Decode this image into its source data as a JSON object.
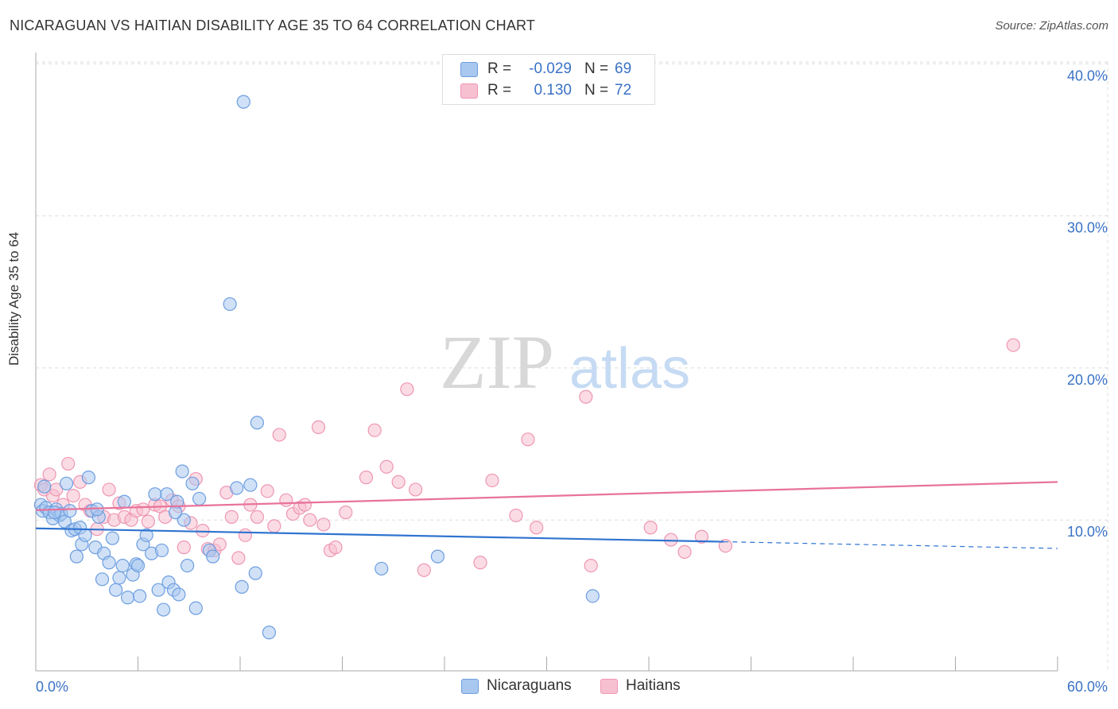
{
  "title": "NICARAGUAN VS HAITIAN DISABILITY AGE 35 TO 64 CORRELATION CHART",
  "source": "Source: ZipAtlas.com",
  "watermark": {
    "zip": "ZIP",
    "atlas": "atlas"
  },
  "colors": {
    "nicaraguans_fill": "#a9c8f0",
    "nicaraguans_stroke": "#6d9ee0",
    "nicaraguans_line": "#2f74d0",
    "haitians_fill": "#f7c0d0",
    "haitians_stroke": "#ee96b2",
    "haitians_line": "#e8739a",
    "axis_text": "#3a72c6",
    "grid": "#dddddd"
  },
  "stats": {
    "nicaraguans": {
      "r_label": "R =",
      "r_value": "-0.029",
      "n_label": "N =",
      "n_value": "69"
    },
    "haitians": {
      "r_label": "R =",
      "r_value": "0.130",
      "n_label": "N =",
      "n_value": "72"
    }
  },
  "legend": {
    "nicaraguans": "Nicaraguans",
    "haitians": "Haitians"
  },
  "chart_data": {
    "type": "scatter",
    "title": "NICARAGUAN VS HAITIAN DISABILITY AGE 35 TO 64 CORRELATION CHART",
    "xlabel": "",
    "ylabel": "Disability Age 35 to 64",
    "xlim": [
      0,
      60
    ],
    "ylim": [
      0,
      42
    ],
    "x_tick_labels": [
      {
        "value": 0,
        "label": "0.0%"
      },
      {
        "value": 60,
        "label": "60.0%"
      }
    ],
    "x_minor_ticks": [
      0,
      6,
      12,
      18,
      24,
      30,
      36,
      42,
      48,
      54,
      60
    ],
    "y_tick_labels": [
      {
        "value": 10,
        "label": "10.0%"
      },
      {
        "value": 20,
        "label": "20.0%"
      },
      {
        "value": 30,
        "label": "30.0%"
      },
      {
        "value": 40,
        "label": "40.0%"
      }
    ],
    "grid": true,
    "series": [
      {
        "name": "Nicaraguans",
        "points": [
          [
            0.3,
            11.0
          ],
          [
            0.4,
            10.6
          ],
          [
            0.6,
            10.8
          ],
          [
            0.8,
            10.5
          ],
          [
            1.0,
            10.1
          ],
          [
            1.2,
            10.7
          ],
          [
            1.4,
            10.3
          ],
          [
            1.5,
            10.4
          ],
          [
            1.7,
            9.9
          ],
          [
            1.8,
            12.4
          ],
          [
            2.0,
            10.6
          ],
          [
            2.1,
            9.3
          ],
          [
            2.3,
            9.4
          ],
          [
            2.4,
            7.6
          ],
          [
            2.6,
            9.5
          ],
          [
            2.7,
            8.4
          ],
          [
            2.9,
            9.0
          ],
          [
            3.1,
            12.8
          ],
          [
            3.3,
            10.6
          ],
          [
            3.5,
            8.2
          ],
          [
            3.7,
            10.2
          ],
          [
            3.9,
            6.1
          ],
          [
            4.0,
            7.8
          ],
          [
            4.3,
            7.2
          ],
          [
            4.5,
            8.8
          ],
          [
            4.7,
            5.4
          ],
          [
            4.9,
            6.2
          ],
          [
            5.1,
            7.0
          ],
          [
            5.2,
            11.2
          ],
          [
            5.4,
            4.9
          ],
          [
            5.7,
            6.4
          ],
          [
            5.9,
            7.1
          ],
          [
            6.1,
            5.0
          ],
          [
            6.3,
            8.4
          ],
          [
            6.5,
            9.0
          ],
          [
            6.8,
            7.8
          ],
          [
            7.0,
            11.7
          ],
          [
            7.2,
            5.4
          ],
          [
            7.4,
            8.0
          ],
          [
            7.5,
            4.1
          ],
          [
            7.7,
            11.7
          ],
          [
            7.8,
            5.9
          ],
          [
            8.1,
            5.4
          ],
          [
            8.3,
            11.2
          ],
          [
            8.4,
            5.1
          ],
          [
            8.6,
            13.2
          ],
          [
            8.7,
            10.0
          ],
          [
            8.9,
            7.0
          ],
          [
            9.2,
            12.4
          ],
          [
            9.4,
            4.2
          ],
          [
            10.2,
            8.0
          ],
          [
            10.4,
            7.6
          ],
          [
            11.4,
            24.2
          ],
          [
            11.8,
            12.1
          ],
          [
            12.1,
            5.6
          ],
          [
            12.2,
            37.5
          ],
          [
            12.6,
            12.3
          ],
          [
            12.9,
            6.5
          ],
          [
            13.0,
            16.4
          ],
          [
            13.7,
            2.6
          ],
          [
            20.3,
            6.8
          ],
          [
            23.6,
            7.6
          ],
          [
            32.7,
            5.0
          ],
          [
            0.5,
            12.2
          ],
          [
            1.1,
            10.5
          ],
          [
            3.6,
            10.7
          ],
          [
            6.0,
            7.0
          ],
          [
            8.2,
            10.5
          ],
          [
            9.6,
            11.4
          ]
        ],
        "trend": {
          "x0": 0,
          "y0": 9.45,
          "x1": 40.4,
          "y1": 8.57,
          "dash_to_x": 60,
          "dash_to_y": 8.13
        }
      },
      {
        "name": "Haitians",
        "points": [
          [
            0.3,
            12.3
          ],
          [
            0.5,
            12.0
          ],
          [
            0.8,
            13.0
          ],
          [
            1.0,
            11.6
          ],
          [
            1.2,
            12.0
          ],
          [
            1.6,
            11.0
          ],
          [
            1.9,
            13.7
          ],
          [
            2.2,
            11.6
          ],
          [
            2.6,
            12.5
          ],
          [
            2.9,
            11.0
          ],
          [
            3.2,
            10.6
          ],
          [
            3.6,
            9.4
          ],
          [
            4.0,
            10.2
          ],
          [
            4.3,
            12.0
          ],
          [
            4.6,
            10.0
          ],
          [
            4.9,
            11.1
          ],
          [
            5.2,
            10.2
          ],
          [
            5.6,
            10.0
          ],
          [
            5.9,
            10.6
          ],
          [
            6.3,
            10.7
          ],
          [
            6.6,
            9.9
          ],
          [
            7.0,
            11.0
          ],
          [
            7.3,
            10.9
          ],
          [
            7.6,
            10.2
          ],
          [
            8.0,
            11.3
          ],
          [
            8.4,
            10.9
          ],
          [
            8.7,
            8.2
          ],
          [
            9.1,
            9.8
          ],
          [
            9.4,
            12.7
          ],
          [
            9.8,
            9.3
          ],
          [
            10.1,
            8.1
          ],
          [
            10.5,
            8.0
          ],
          [
            10.8,
            8.4
          ],
          [
            11.2,
            11.8
          ],
          [
            11.5,
            10.2
          ],
          [
            11.9,
            7.5
          ],
          [
            12.3,
            9.0
          ],
          [
            12.6,
            11.0
          ],
          [
            13.0,
            10.2
          ],
          [
            13.6,
            11.9
          ],
          [
            14.0,
            9.6
          ],
          [
            14.3,
            15.6
          ],
          [
            14.7,
            11.3
          ],
          [
            15.1,
            10.4
          ],
          [
            15.5,
            10.8
          ],
          [
            15.8,
            11.0
          ],
          [
            16.1,
            10.0
          ],
          [
            16.6,
            16.1
          ],
          [
            16.9,
            9.7
          ],
          [
            17.3,
            8.0
          ],
          [
            17.6,
            8.2
          ],
          [
            18.2,
            10.5
          ],
          [
            19.4,
            12.8
          ],
          [
            19.9,
            15.9
          ],
          [
            20.6,
            13.5
          ],
          [
            21.3,
            12.5
          ],
          [
            21.8,
            18.6
          ],
          [
            22.3,
            12.0
          ],
          [
            22.8,
            6.7
          ],
          [
            26.1,
            7.2
          ],
          [
            26.8,
            12.6
          ],
          [
            28.2,
            10.3
          ],
          [
            28.9,
            15.3
          ],
          [
            29.4,
            9.5
          ],
          [
            32.3,
            18.1
          ],
          [
            32.6,
            7.0
          ],
          [
            36.1,
            9.5
          ],
          [
            37.3,
            8.7
          ],
          [
            38.1,
            7.9
          ],
          [
            39.1,
            8.9
          ],
          [
            40.5,
            8.3
          ],
          [
            57.4,
            21.5
          ]
        ],
        "trend": {
          "x0": 0,
          "y0": 10.65,
          "x1": 60,
          "y1": 12.5
        }
      }
    ]
  }
}
